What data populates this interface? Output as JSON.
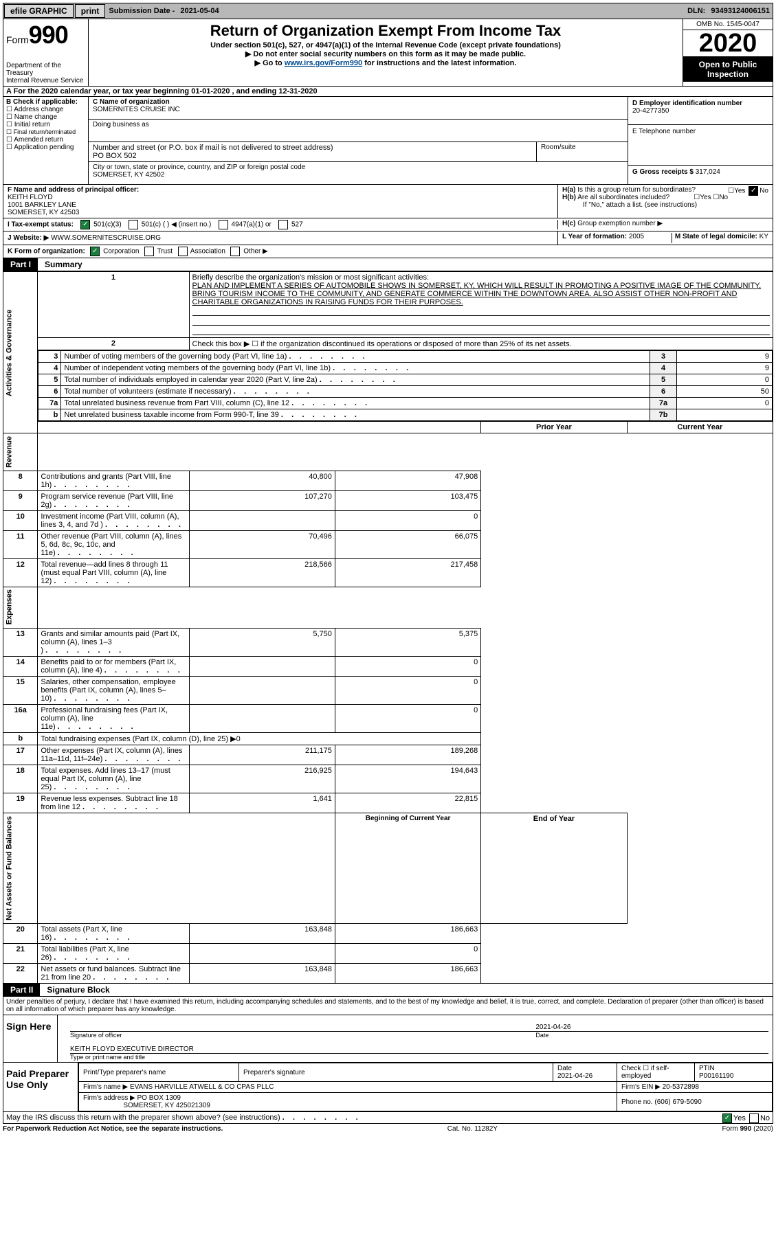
{
  "topbar": {
    "efile": "efile GRAPHIC",
    "print": "print",
    "submission_label": "Submission Date - ",
    "submission_date": "2021-05-04",
    "dln_label": "DLN: ",
    "dln": "93493124006151"
  },
  "header": {
    "form_label": "Form",
    "form_number": "990",
    "dept": "Department of the Treasury\nInternal Revenue Service",
    "dept1": "Department of the Treasury",
    "dept2": "Internal Revenue Service",
    "title": "Return of Organization Exempt From Income Tax",
    "subtitle": "Under section 501(c), 527, or 4947(a)(1) of the Internal Revenue Code (except private foundations)",
    "note1": "▶ Do not enter social security numbers on this form as it may be made public.",
    "note2_pre": "▶ Go to ",
    "note2_link": "www.irs.gov/Form990",
    "note2_post": " for instructions and the latest information.",
    "omb": "OMB No. 1545-0047",
    "year": "2020",
    "open": "Open to Public Inspection"
  },
  "cal": {
    "text_pre": "A For the 2020 calendar year, or tax year beginning ",
    "begin": "01-01-2020",
    "mid": "  , and ending ",
    "end": "12-31-2020"
  },
  "sectionB": {
    "label": "B Check if applicable:",
    "opts": [
      "Address change",
      "Name change",
      "Initial return",
      "Final return/terminated",
      "Amended return",
      "Application pending"
    ]
  },
  "sectionC": {
    "name_label": "C Name of organization",
    "name": "SOMERNITES CRUISE INC",
    "dba_label": "Doing business as",
    "addr_label": "Number and street (or P.O. box if mail is not delivered to street address)",
    "room_label": "Room/suite",
    "addr": "PO BOX 502",
    "city_label": "City or town, state or province, country, and ZIP or foreign postal code",
    "city": "SOMERSET, KY  42502"
  },
  "sectionD": {
    "label": "D Employer identification number",
    "ein": "20-4277350"
  },
  "sectionE": {
    "label": "E Telephone number"
  },
  "sectionG": {
    "label": "G Gross receipts $ ",
    "value": "317,024"
  },
  "sectionF": {
    "label": "F Name and address of principal officer:",
    "name": "KEITH FLOYD",
    "addr1": "1001 BARKLEY LANE",
    "addr2": "SOMERSET, KY  42503"
  },
  "sectionH": {
    "a_label": "Is this a group return for subordinates?",
    "a_tag": "H(a)",
    "b_tag": "H(b)",
    "b_label": "Are all subordinates included?",
    "note": "If \"No,\" attach a list. (see instructions)",
    "c_tag": "H(c)",
    "c_label": "Group exemption number ▶",
    "yes": "Yes",
    "no": "No"
  },
  "sectionI": {
    "label": "I    Tax-exempt status:",
    "opts": [
      "501(c)(3)",
      "501(c) ( ) ◀ (insert no.)",
      "4947(a)(1) or",
      "527"
    ]
  },
  "sectionJ": {
    "label": "J    Website: ▶ ",
    "value": "WWW.SOMERNITESCRUISE.ORG"
  },
  "sectionK": {
    "label": "K Form of organization:",
    "opts": [
      "Corporation",
      "Trust",
      "Association",
      "Other ▶"
    ]
  },
  "sectionL": {
    "label": "L Year of formation: ",
    "value": "2005"
  },
  "sectionM": {
    "label": "M State of legal domicile: ",
    "value": "KY"
  },
  "part1": {
    "tag": "Part I",
    "title": "Summary",
    "vlabel_ag": "Activities & Governance",
    "vlabel_rev": "Revenue",
    "vlabel_exp": "Expenses",
    "vlabel_na": "Net Assets or Fund Balances",
    "line1_label": "Briefly describe the organization's mission or most significant activities:",
    "line1_text": "PLAN AND IMPLEMENT A SERIES OF AUTOMOBILE SHOWS IN SOMERSET, KY, WHICH WILL RESULT IN PROMOTING A POSITIVE IMAGE OF THE COMMUNITY, BRING TOURISM INCOME TO THE COMMUNITY, AND GENERATE COMMERCE WITHIN THE DOWNTOWN AREA. ALSO ASSIST OTHER NON-PROFIT AND CHARITABLE ORGANIZATIONS IN RAISING FUNDS FOR THEIR PURPOSES.",
    "line2": "Check this box ▶ ☐ if the organization discontinued its operations or disposed of more than 25% of its net assets.",
    "rows_ag": [
      {
        "n": "3",
        "label": "Number of voting members of the governing body (Part VI, line 1a)",
        "box": "3",
        "val": "9"
      },
      {
        "n": "4",
        "label": "Number of independent voting members of the governing body (Part VI, line 1b)",
        "box": "4",
        "val": "9"
      },
      {
        "n": "5",
        "label": "Total number of individuals employed in calendar year 2020 (Part V, line 2a)",
        "box": "5",
        "val": "0"
      },
      {
        "n": "6",
        "label": "Total number of volunteers (estimate if necessary)",
        "box": "6",
        "val": "50"
      },
      {
        "n": "7a",
        "label": "Total unrelated business revenue from Part VIII, column (C), line 12",
        "box": "7a",
        "val": "0"
      },
      {
        "n": "b",
        "label": "Net unrelated business taxable income from Form 990-T, line 39",
        "box": "7b",
        "val": ""
      }
    ],
    "hdr_prior": "Prior Year",
    "hdr_current": "Current Year",
    "rows_rev": [
      {
        "n": "8",
        "label": "Contributions and grants (Part VIII, line 1h)",
        "p": "40,800",
        "c": "47,908"
      },
      {
        "n": "9",
        "label": "Program service revenue (Part VIII, line 2g)",
        "p": "107,270",
        "c": "103,475"
      },
      {
        "n": "10",
        "label": "Investment income (Part VIII, column (A), lines 3, 4, and 7d )",
        "p": "",
        "c": "0"
      },
      {
        "n": "11",
        "label": "Other revenue (Part VIII, column (A), lines 5, 6d, 8c, 9c, 10c, and 11e)",
        "p": "70,496",
        "c": "66,075"
      },
      {
        "n": "12",
        "label": "Total revenue—add lines 8 through 11 (must equal Part VIII, column (A), line 12)",
        "p": "218,566",
        "c": "217,458"
      }
    ],
    "rows_exp": [
      {
        "n": "13",
        "label": "Grants and similar amounts paid (Part IX, column (A), lines 1–3 )",
        "p": "5,750",
        "c": "5,375"
      },
      {
        "n": "14",
        "label": "Benefits paid to or for members (Part IX, column (A), line 4)",
        "p": "",
        "c": "0"
      },
      {
        "n": "15",
        "label": "Salaries, other compensation, employee benefits (Part IX, column (A), lines 5–10)",
        "p": "",
        "c": "0"
      },
      {
        "n": "16a",
        "label": "Professional fundraising fees (Part IX, column (A), line 11e)",
        "p": "",
        "c": "0"
      },
      {
        "n": "b",
        "label": "Total fundraising expenses (Part IX, column (D), line 25) ▶0",
        "p": null,
        "c": null
      },
      {
        "n": "17",
        "label": "Other expenses (Part IX, column (A), lines 11a–11d, 11f–24e)",
        "p": "211,175",
        "c": "189,268"
      },
      {
        "n": "18",
        "label": "Total expenses. Add lines 13–17 (must equal Part IX, column (A), line 25)",
        "p": "216,925",
        "c": "194,643"
      },
      {
        "n": "19",
        "label": "Revenue less expenses. Subtract line 18 from line 12",
        "p": "1,641",
        "c": "22,815"
      }
    ],
    "hdr_boy": "Beginning of Current Year",
    "hdr_eoy": "End of Year",
    "rows_na": [
      {
        "n": "20",
        "label": "Total assets (Part X, line 16)",
        "p": "163,848",
        "c": "186,663"
      },
      {
        "n": "21",
        "label": "Total liabilities (Part X, line 26)",
        "p": "",
        "c": "0"
      },
      {
        "n": "22",
        "label": "Net assets or fund balances. Subtract line 21 from line 20",
        "p": "163,848",
        "c": "186,663"
      }
    ]
  },
  "part2": {
    "tag": "Part II",
    "title": "Signature Block",
    "declare": "Under penalties of perjury, I declare that I have examined this return, including accompanying schedules and statements, and to the best of my knowledge and belief, it is true, correct, and complete. Declaration of preparer (other than officer) is based on all information of which preparer has any knowledge.",
    "sign_here": "Sign Here",
    "sig_officer": "Signature of officer",
    "sig_date": "Date",
    "sig_date_val": "2021-04-26",
    "officer": "KEITH FLOYD  EXECUTIVE DIRECTOR",
    "type_name": "Type or print name and title",
    "paid": "Paid Preparer Use Only",
    "p_name_label": "Print/Type preparer's name",
    "p_sig_label": "Preparer's signature",
    "p_date_label": "Date",
    "p_date": "2021-04-26",
    "p_check": "Check ☐ if self-employed",
    "p_ptin_label": "PTIN",
    "p_ptin": "P00161190",
    "firm_name_label": "Firm's name    ▶ ",
    "firm_name": "EVANS HARVILLE ATWELL & CO CPAS PLLC",
    "firm_ein_label": "Firm's EIN ▶ ",
    "firm_ein": "20-5372898",
    "firm_addr_label": "Firm's address ▶ ",
    "firm_addr1": "PO BOX 1309",
    "firm_addr2": "SOMERSET, KY  425021309",
    "firm_phone_label": "Phone no. ",
    "firm_phone": "(606) 679-5090",
    "discuss": "May the IRS discuss this return with the preparer shown above? (see instructions)",
    "yes": "Yes",
    "no": "No"
  },
  "footer": {
    "left": "For Paperwork Reduction Act Notice, see the separate instructions.",
    "mid": "Cat. No. 11282Y",
    "right": "Form 990 (2020)"
  }
}
